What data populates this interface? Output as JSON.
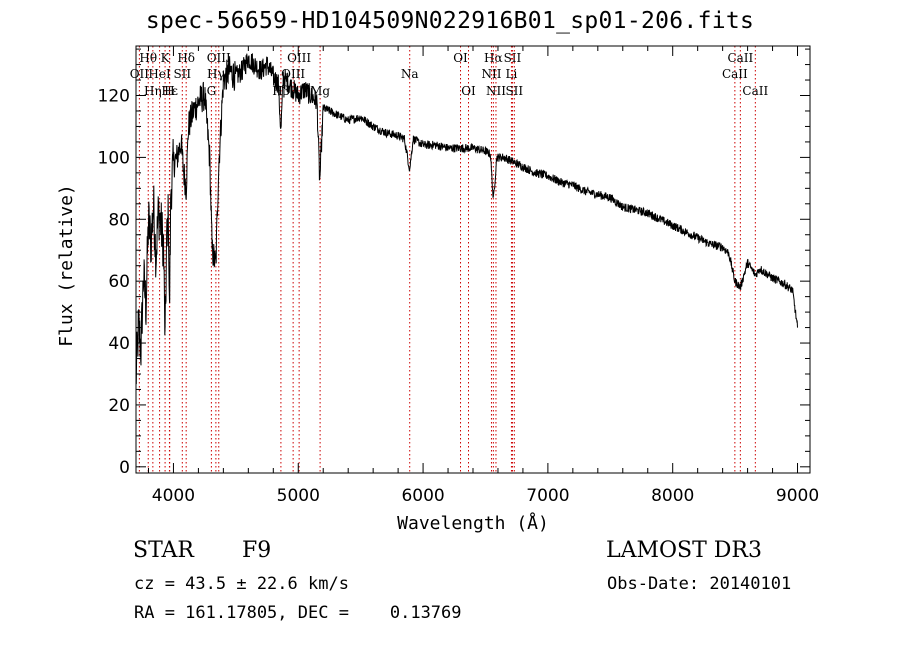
{
  "chart_data": {
    "type": "line",
    "title": "spec-56659-HD104509N022916B01_sp01-206.fits",
    "xlabel": "Wavelength (Å)",
    "ylabel": "Flux (relative)",
    "xlim": [
      3700,
      9100
    ],
    "ylim": [
      -2,
      136
    ],
    "xticks": [
      4000,
      5000,
      6000,
      7000,
      8000,
      9000
    ],
    "yticks": [
      0,
      20,
      40,
      60,
      80,
      100,
      120
    ],
    "series": [
      {
        "name": "spectrum",
        "x": [
          3700,
          3720,
          3740,
          3760,
          3780,
          3800,
          3820,
          3840,
          3860,
          3880,
          3900,
          3920,
          3933,
          3945,
          3960,
          3968,
          3980,
          4000,
          4030,
          4060,
          4080,
          4102,
          4120,
          4160,
          4200,
          4250,
          4290,
          4310,
          4340,
          4360,
          4400,
          4450,
          4500,
          4550,
          4600,
          4650,
          4700,
          4750,
          4800,
          4840,
          4861,
          4880,
          4920,
          4960,
          5000,
          5050,
          5100,
          5150,
          5172,
          5200,
          5300,
          5400,
          5500,
          5600,
          5700,
          5800,
          5850,
          5893,
          5920,
          6000,
          6100,
          6200,
          6300,
          6400,
          6500,
          6540,
          6563,
          6590,
          6650,
          6700,
          6800,
          6900,
          7000,
          7100,
          7200,
          7300,
          7400,
          7500,
          7600,
          7700,
          7800,
          7900,
          8000,
          8100,
          8200,
          8300,
          8400,
          8450,
          8498,
          8542,
          8600,
          8662,
          8700,
          8800,
          8900,
          8960,
          9000
        ],
        "values": [
          28,
          46,
          38,
          62,
          52,
          80,
          72,
          85,
          68,
          83,
          78,
          72,
          40,
          72,
          82,
          48,
          90,
          98,
          100,
          105,
          96,
          90,
          110,
          115,
          118,
          120,
          100,
          70,
          65,
          95,
          125,
          128,
          126,
          128,
          132,
          130,
          128,
          130,
          126,
          124,
          108,
          126,
          124,
          122,
          120,
          122,
          120,
          118,
          92,
          116,
          114,
          112,
          113,
          110,
          108,
          107,
          106,
          96,
          106,
          104,
          104,
          103,
          103,
          103,
          102,
          101,
          86,
          100,
          100,
          99,
          97,
          95,
          94,
          92,
          91,
          89,
          88,
          87,
          84,
          83,
          82,
          80,
          78,
          76,
          74,
          72,
          71,
          69,
          60,
          58,
          66,
          62,
          64,
          61,
          59,
          57,
          45
        ]
      }
    ],
    "lines": [
      {
        "label": "Hθ",
        "wave": 3798,
        "row": 1
      },
      {
        "label": "OII",
        "wave": 3727,
        "row": 2
      },
      {
        "label": "Hη",
        "wave": 3835,
        "row": 3
      },
      {
        "label": "HeI",
        "wave": 3889,
        "row": 2
      },
      {
        "label": "K",
        "wave": 3933,
        "row": 1
      },
      {
        "label": "Hε",
        "wave": 3970,
        "row": 3
      },
      {
        "label": "SII",
        "wave": 4071,
        "row": 2
      },
      {
        "label": "H",
        "wave": 3968,
        "row": 3
      },
      {
        "label": "Hδ",
        "wave": 4102,
        "row": 1
      },
      {
        "label": "OIII",
        "wave": 4363,
        "row": 1
      },
      {
        "label": "Hγ",
        "wave": 4340,
        "row": 2
      },
      {
        "label": "G",
        "wave": 4304,
        "row": 3
      },
      {
        "label": "Hβ",
        "wave": 4861,
        "row": 3
      },
      {
        "label": "OIII",
        "wave": 5007,
        "row": 1
      },
      {
        "label": "OIII",
        "wave": 4959,
        "row": 2
      },
      {
        "label": "Mg",
        "wave": 5175,
        "row": 3
      },
      {
        "label": "Na",
        "wave": 5893,
        "row": 2
      },
      {
        "label": "OI",
        "wave": 6300,
        "row": 1
      },
      {
        "label": "OI",
        "wave": 6364,
        "row": 3
      },
      {
        "label": "Hα",
        "wave": 6563,
        "row": 1
      },
      {
        "label": "NII",
        "wave": 6548,
        "row": 2
      },
      {
        "label": "NII",
        "wave": 6584,
        "row": 3
      },
      {
        "label": "SII",
        "wave": 6716,
        "row": 1
      },
      {
        "label": "Li",
        "wave": 6708,
        "row": 2
      },
      {
        "label": "SII",
        "wave": 6731,
        "row": 3
      },
      {
        "label": "CaII",
        "wave": 8542,
        "row": 1
      },
      {
        "label": "CaII",
        "wave": 8498,
        "row": 2
      },
      {
        "label": "CaII",
        "wave": 8662,
        "row": 3
      }
    ]
  },
  "info": {
    "class_label": "STAR",
    "subclass": "F9",
    "survey": "LAMOST DR3",
    "cz": "cz = 43.5 ± 22.6 km/s",
    "obs_date": "Obs-Date: 20140101",
    "coords": "RA = 161.17805, DEC =    0.13769"
  },
  "colors": {
    "axis": "#000000",
    "spectrum": "#000000",
    "line_marker": "#cc0000"
  }
}
